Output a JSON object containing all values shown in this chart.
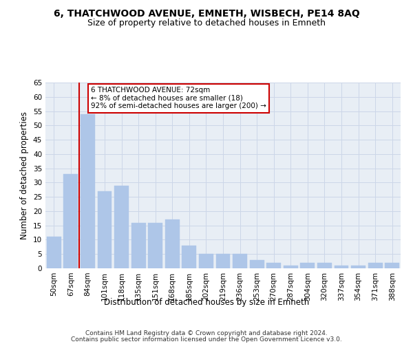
{
  "title": "6, THATCHWOOD AVENUE, EMNETH, WISBECH, PE14 8AQ",
  "subtitle": "Size of property relative to detached houses in Emneth",
  "xlabel": "Distribution of detached houses by size in Emneth",
  "ylabel": "Number of detached properties",
  "categories": [
    "50sqm",
    "67sqm",
    "84sqm",
    "101sqm",
    "118sqm",
    "135sqm",
    "151sqm",
    "168sqm",
    "185sqm",
    "202sqm",
    "219sqm",
    "236sqm",
    "253sqm",
    "270sqm",
    "287sqm",
    "304sqm",
    "320sqm",
    "337sqm",
    "354sqm",
    "371sqm",
    "388sqm"
  ],
  "values": [
    11,
    33,
    54,
    27,
    29,
    16,
    16,
    17,
    8,
    5,
    5,
    5,
    3,
    2,
    1,
    2,
    2,
    1,
    1,
    2,
    2
  ],
  "bar_color": "#aec6e8",
  "bar_edge_color": "#aec6e8",
  "redline_x": 1.5,
  "annotation_text": "6 THATCHWOOD AVENUE: 72sqm\n← 8% of detached houses are smaller (18)\n92% of semi-detached houses are larger (200) →",
  "annotation_box_color": "#ffffff",
  "annotation_box_edge": "#cc0000",
  "redline_color": "#cc0000",
  "ylim": [
    0,
    65
  ],
  "yticks": [
    0,
    5,
    10,
    15,
    20,
    25,
    30,
    35,
    40,
    45,
    50,
    55,
    60,
    65
  ],
  "grid_color": "#ccd6e8",
  "background_color": "#e8eef5",
  "footer1": "Contains HM Land Registry data © Crown copyright and database right 2024.",
  "footer2": "Contains public sector information licensed under the Open Government Licence v3.0.",
  "title_fontsize": 10,
  "subtitle_fontsize": 9,
  "xlabel_fontsize": 8.5,
  "ylabel_fontsize": 8.5,
  "tick_fontsize": 7.5,
  "ann_fontsize": 7.5
}
